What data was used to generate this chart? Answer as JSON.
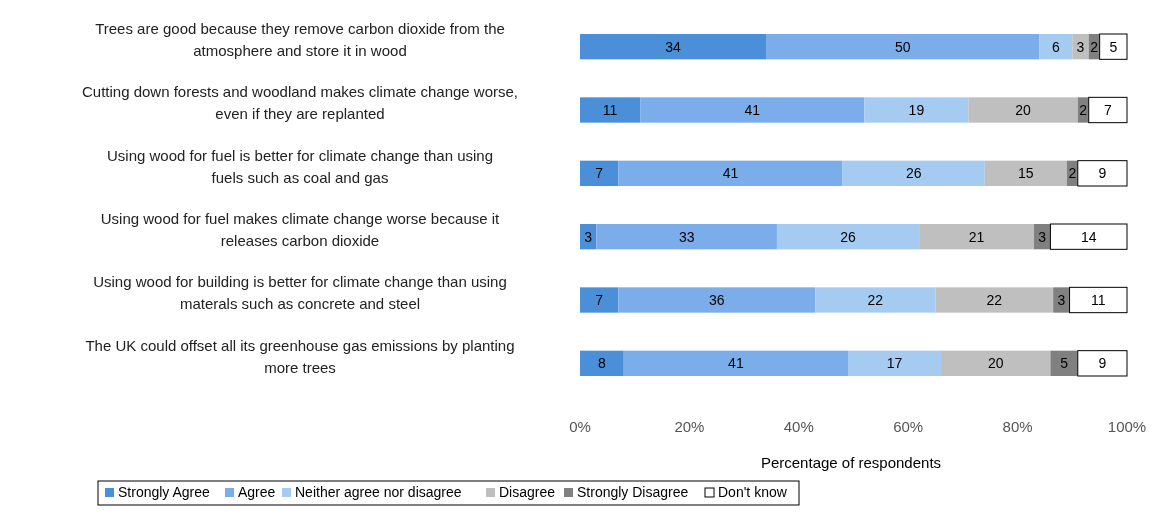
{
  "chart_data": {
    "type": "bar",
    "orientation": "horizontal",
    "stacked": true,
    "xlabel": "Percentage of respondents",
    "categories": [
      "Trees are good because they remove carbon dioxide from the atmosphere and store it in wood",
      "Cutting down forests and woodland makes climate change worse, even if they are replanted",
      "Using wood for fuel is better for climate change than using fuels such as coal and gas",
      "Using wood for fuel makes climate change worse because it releases carbon dioxide",
      "Using wood for building is better for climate change than using materals such as concrete and steel",
      "The UK could offset all its greenhouse gas emissions by planting more trees"
    ],
    "series": [
      {
        "name": "Strongly Agree",
        "color": "#4a8fd8",
        "values": [
          34,
          11,
          7,
          3,
          7,
          8
        ],
        "value_labels": [
          "34",
          "11",
          "7",
          "3",
          "7",
          "8"
        ]
      },
      {
        "name": "Agree",
        "color": "#7badea",
        "values": [
          50,
          41,
          41,
          33,
          36,
          41
        ],
        "value_labels": [
          "50",
          "41",
          "41",
          "33",
          "36",
          "41"
        ]
      },
      {
        "name": "Neither agree nor disagree",
        "color": "#a6cbf0",
        "values": [
          6,
          19,
          26,
          26,
          22,
          17
        ],
        "value_labels": [
          "6",
          "19",
          "26",
          "26",
          "22",
          "17"
        ]
      },
      {
        "name": "Disagree",
        "color": "#bfbfbf",
        "values": [
          3,
          20,
          15,
          21,
          21.5,
          20
        ],
        "value_labels": [
          "3",
          "20",
          "15",
          "21",
          "22",
          "20"
        ]
      },
      {
        "name": "Strongly Disagree",
        "color": "#808080",
        "values": [
          2,
          2,
          2,
          3,
          3,
          5
        ],
        "value_labels": [
          "2",
          "2",
          "2",
          "3",
          "3",
          "5"
        ]
      },
      {
        "name": "Don't know",
        "color": "#ffffff",
        "values": [
          5,
          7,
          9,
          14,
          10.5,
          9
        ],
        "value_labels": [
          "5",
          "7",
          "9",
          "14",
          "11",
          "9"
        ]
      }
    ],
    "xlim": [
      0,
      100
    ],
    "xticks": [
      {
        "value": 0,
        "label": "0%"
      },
      {
        "value": 20,
        "label": "20%"
      },
      {
        "value": 40,
        "label": "40%"
      },
      {
        "value": 60,
        "label": "60%"
      },
      {
        "value": 80,
        "label": "80%"
      },
      {
        "value": 100,
        "label": "100%"
      }
    ],
    "legend": "bottom",
    "grid": false
  }
}
